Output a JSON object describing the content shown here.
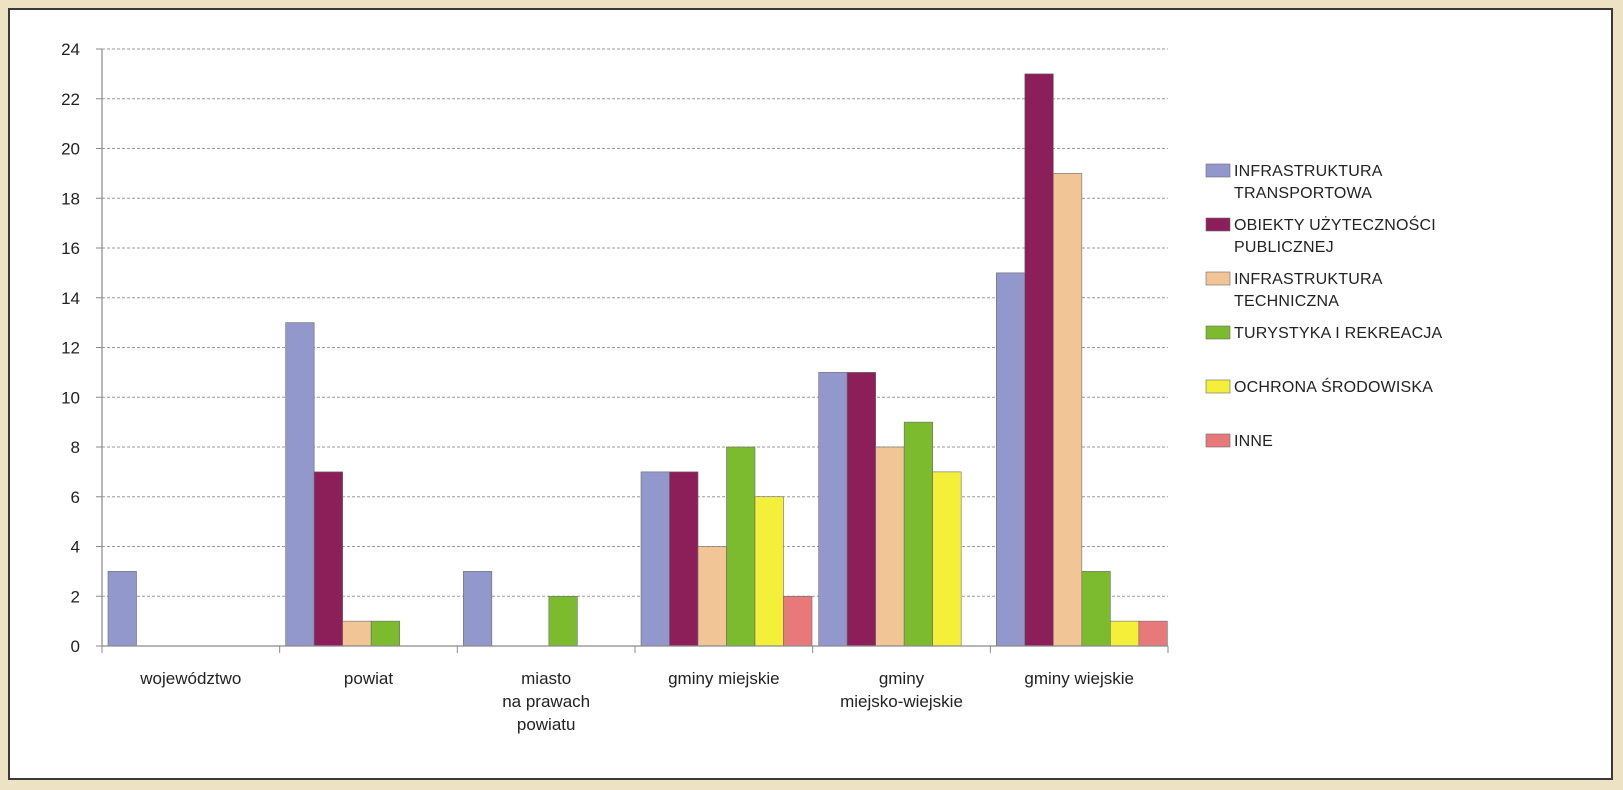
{
  "chart_data": {
    "type": "bar",
    "categories": [
      [
        "województwo"
      ],
      [
        "powiat"
      ],
      [
        "miasto",
        "na prawach",
        "powiatu"
      ],
      [
        "gminy miejskie"
      ],
      [
        "gminy",
        "miejsko-wiejskie"
      ],
      [
        "gminy wiejskie"
      ]
    ],
    "series": [
      {
        "name": [
          "INFRASTRUKTURA",
          "TRANSPORTOWA"
        ],
        "color": "#9297cc",
        "values": [
          3,
          13,
          3,
          7,
          11,
          15
        ]
      },
      {
        "name": [
          "OBIEKTY UŻYTECZNOŚCI",
          "PUBLICZNEJ"
        ],
        "color": "#8c1e5a",
        "values": [
          0,
          7,
          0,
          7,
          11,
          23
        ]
      },
      {
        "name": [
          "INFRASTRUKTURA",
          "TECHNICZNA"
        ],
        "color": "#f2c596",
        "values": [
          0,
          1,
          0,
          4,
          8,
          19
        ]
      },
      {
        "name": [
          "TURYSTYKA I REKREACJA"
        ],
        "color": "#7cba2e",
        "values": [
          0,
          1,
          2,
          8,
          9,
          3
        ]
      },
      {
        "name": [
          "OCHRONA ŚRODOWISKA"
        ],
        "color": "#f4f03a",
        "values": [
          0,
          0,
          0,
          6,
          7,
          1
        ]
      },
      {
        "name": [
          "INNE"
        ],
        "color": "#e8797a",
        "values": [
          0,
          0,
          0,
          2,
          0,
          1
        ]
      }
    ],
    "ylim": [
      0,
      24
    ],
    "yticks": [
      0,
      2,
      4,
      6,
      8,
      10,
      12,
      14,
      16,
      18,
      20,
      22,
      24
    ],
    "grid": true,
    "legend_position": "right"
  }
}
